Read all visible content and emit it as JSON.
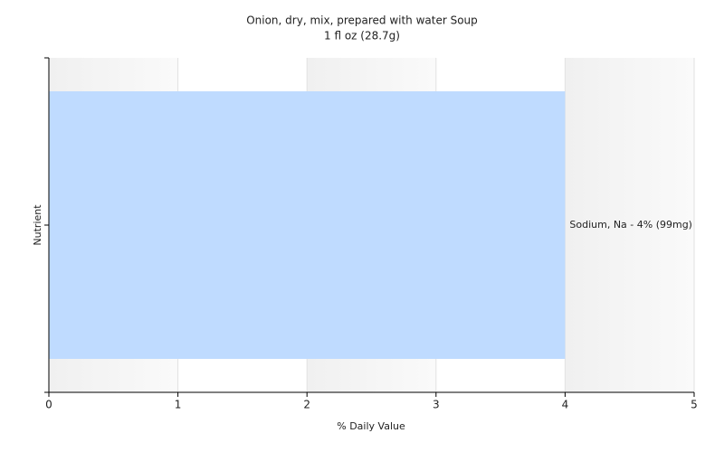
{
  "chart_data": {
    "type": "hbar",
    "title": "Onion, dry, mix, prepared with water Soup",
    "subtitle": "1 fl oz (28.7g)",
    "x_label": "% Daily Value",
    "y_label": "Nutrient",
    "categories": [
      null
    ],
    "values": [
      4
    ],
    "value_labels": [
      "Sodium, Na - 4% (99mg)"
    ],
    "color": "#bfdbff",
    "xlim": [
      0,
      5
    ],
    "xticks": [
      0,
      1,
      2,
      3,
      4,
      5
    ],
    "grid": true
  }
}
